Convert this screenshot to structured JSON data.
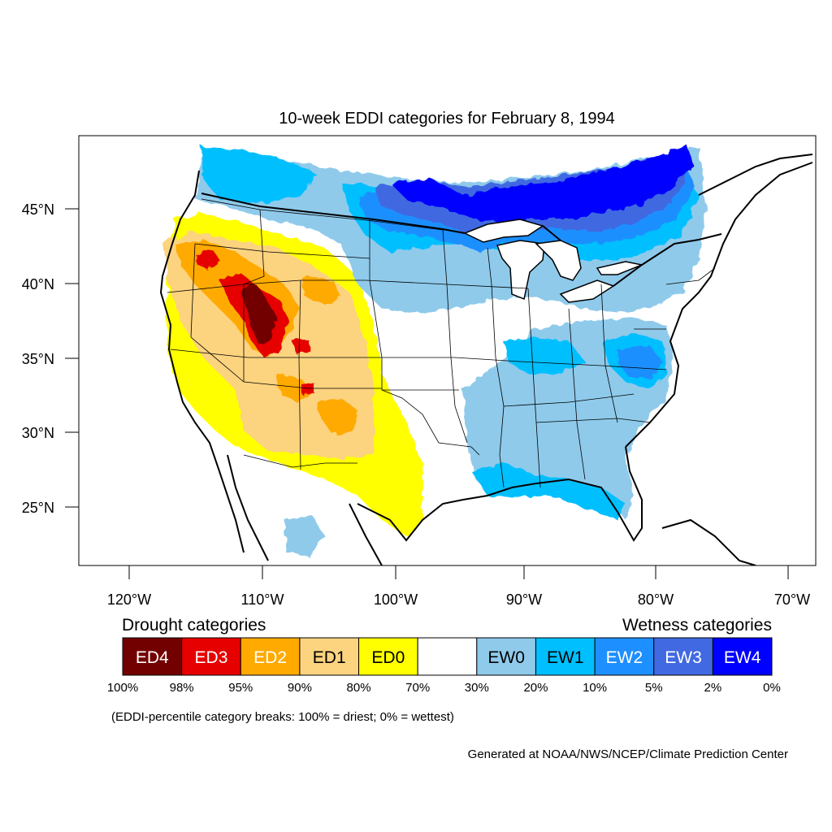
{
  "title": "10-week EDDI categories for February 8, 1994",
  "lat_labels": [
    "45°N",
    "40°N",
    "35°N",
    "30°N",
    "25°N"
  ],
  "lon_labels": [
    "120°W",
    "110°W",
    "100°W",
    "90°W",
    "80°W",
    "70°W"
  ],
  "legend": {
    "drought_title": "Drought categories",
    "wetness_title": "Wetness categories",
    "categories": [
      {
        "label": "ED4",
        "color": "#730000",
        "text_color": "#ffffff"
      },
      {
        "label": "ED3",
        "color": "#e60000",
        "text_color": "#ffffff"
      },
      {
        "label": "ED2",
        "color": "#ffaa00",
        "text_color": "#ffffff"
      },
      {
        "label": "ED1",
        "color": "#fcd37f",
        "text_color": "#000000"
      },
      {
        "label": "ED0",
        "color": "#ffff00",
        "text_color": "#000000"
      },
      {
        "label": "",
        "color": "#ffffff",
        "text_color": "#000000"
      },
      {
        "label": "EW0",
        "color": "#8fcaeb",
        "text_color": "#000000"
      },
      {
        "label": "EW1",
        "color": "#00bfff",
        "text_color": "#000000"
      },
      {
        "label": "EW2",
        "color": "#1e8fff",
        "text_color": "#ffffff"
      },
      {
        "label": "EW3",
        "color": "#4169e1",
        "text_color": "#ffffff"
      },
      {
        "label": "EW4",
        "color": "#0000ff",
        "text_color": "#ffffff"
      }
    ],
    "breaks": [
      "100%",
      "98%",
      "95%",
      "90%",
      "80%",
      "70%",
      "30%",
      "20%",
      "10%",
      "5%",
      "2%",
      "0%"
    ],
    "note": "(EDDI-percentile category breaks: 100% = driest; 0% = wettest)"
  },
  "credit": "Generated at NOAA/NWS/NCEP/Climate Prediction Center"
}
